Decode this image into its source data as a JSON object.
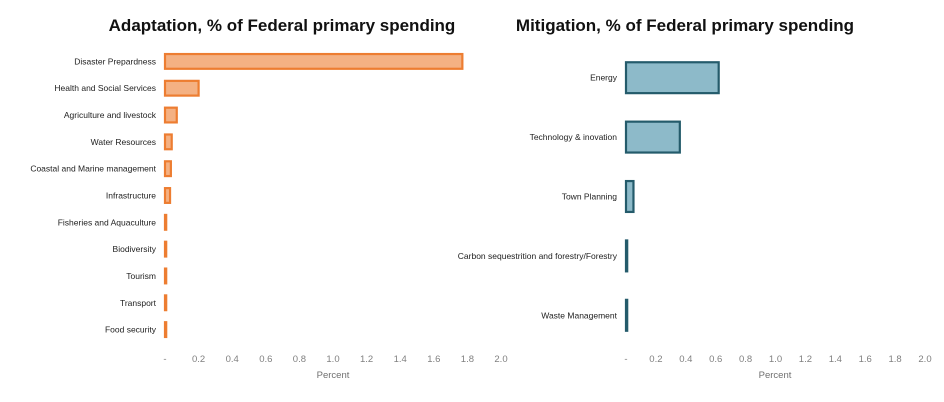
{
  "chart_data": [
    {
      "type": "bar",
      "orientation": "horizontal",
      "title": "Adaptation, % of Federal primary spending",
      "xlabel": "Percent",
      "ylabel": "",
      "xlim": [
        0,
        2.0
      ],
      "grid": false,
      "tick_labels": [
        "-",
        "0.2",
        "0.4",
        "0.6",
        "0.8",
        "1.0",
        "1.2",
        "1.4",
        "1.6",
        "1.8",
        "2.0"
      ],
      "categories": [
        "Disaster Prepardness",
        "Health and Social Services",
        "Agriculture and livestock",
        "Water Resources",
        "Coastal and Marine management",
        "Infrastructure",
        "Fisheries and Aquaculture",
        "Biodiversity",
        "Tourism",
        "Transport",
        "Food security"
      ],
      "values": [
        1.77,
        0.2,
        0.07,
        0.04,
        0.035,
        0.03,
        0.005,
        0.005,
        0.005,
        0.005,
        0.005
      ],
      "colors": {
        "fill": "#F4B183",
        "stroke": "#ED7D31"
      }
    },
    {
      "type": "bar",
      "orientation": "horizontal",
      "title": "Mitigation, % of Federal primary spending",
      "xlabel": "Percent",
      "ylabel": "",
      "xlim": [
        0,
        2.0
      ],
      "grid": false,
      "tick_labels": [
        "-",
        "0.2",
        "0.4",
        "0.6",
        "0.8",
        "1.0",
        "1.2",
        "1.4",
        "1.6",
        "1.8",
        "2.0"
      ],
      "categories": [
        "Energy",
        "Technology & inovation",
        "Town Planning",
        "Carbon sequestrition and forestry/Forestry",
        "Waste Management"
      ],
      "values": [
        0.62,
        0.36,
        0.05,
        0.005,
        0.005
      ],
      "colors": {
        "fill": "#8DBAC9",
        "stroke": "#245B6B"
      }
    }
  ]
}
